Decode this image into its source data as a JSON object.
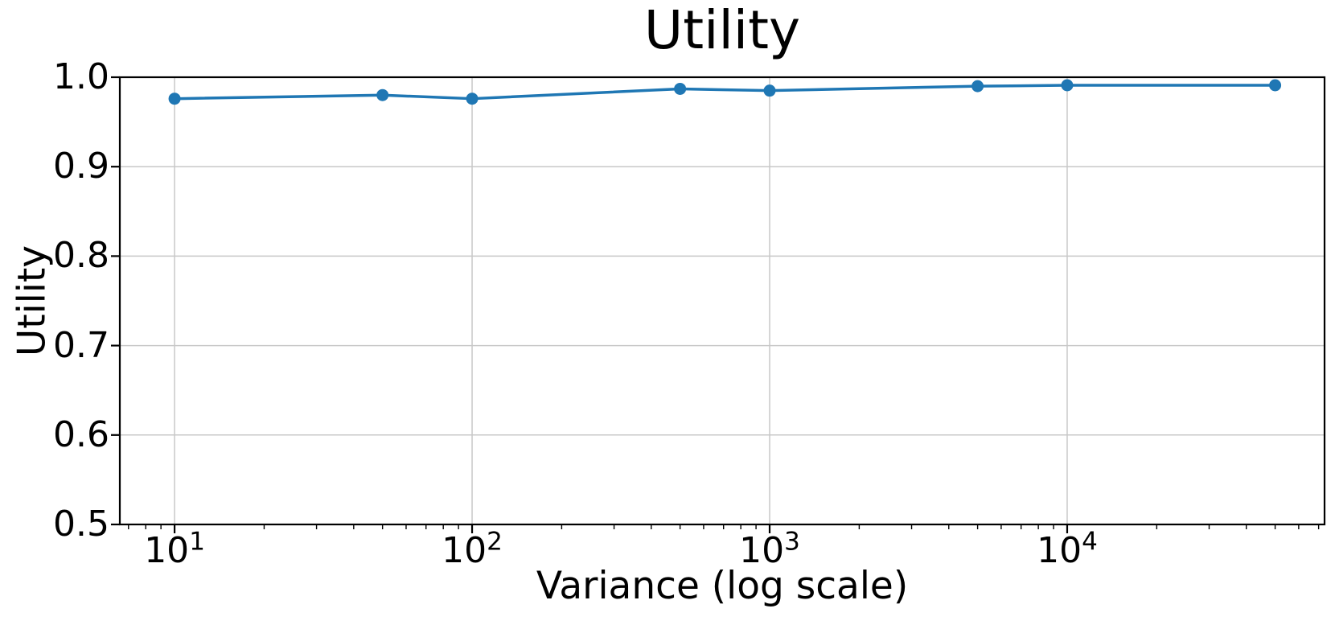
{
  "chart_data": {
    "type": "line",
    "title": "Utility",
    "xlabel": "Variance (log scale)",
    "ylabel": "Utility",
    "x_scale": "log",
    "x": [
      10,
      50,
      100,
      500,
      1000,
      5000,
      10000,
      50000
    ],
    "series": [
      {
        "name": "Utility",
        "values": [
          0.976,
          0.98,
          0.976,
          0.987,
          0.985,
          0.99,
          0.991,
          0.991
        ],
        "color": "#1f77b4"
      }
    ],
    "ylim": [
      0.5,
      1.0
    ],
    "x_log_limits": [
      0.816,
      4.865
    ],
    "grid": true,
    "legend": false,
    "y_ticks": [
      {
        "value": 1.0,
        "label": "1.0"
      },
      {
        "value": 0.9,
        "label": "0.9"
      },
      {
        "value": 0.8,
        "label": "0.8"
      },
      {
        "value": 0.7,
        "label": "0.7"
      },
      {
        "value": 0.6,
        "label": "0.6"
      },
      {
        "value": 0.5,
        "label": "0.5"
      }
    ],
    "x_ticks": [
      {
        "value": 10,
        "base": "10",
        "exp": "1"
      },
      {
        "value": 100,
        "base": "10",
        "exp": "2"
      },
      {
        "value": 1000,
        "base": "10",
        "exp": "3"
      },
      {
        "value": 10000,
        "base": "10",
        "exp": "4"
      }
    ],
    "colors": {
      "line": "#1f77b4",
      "grid": "#c8c8c8",
      "axis": "#000000",
      "background": "#ffffff",
      "text": "#000000"
    }
  }
}
